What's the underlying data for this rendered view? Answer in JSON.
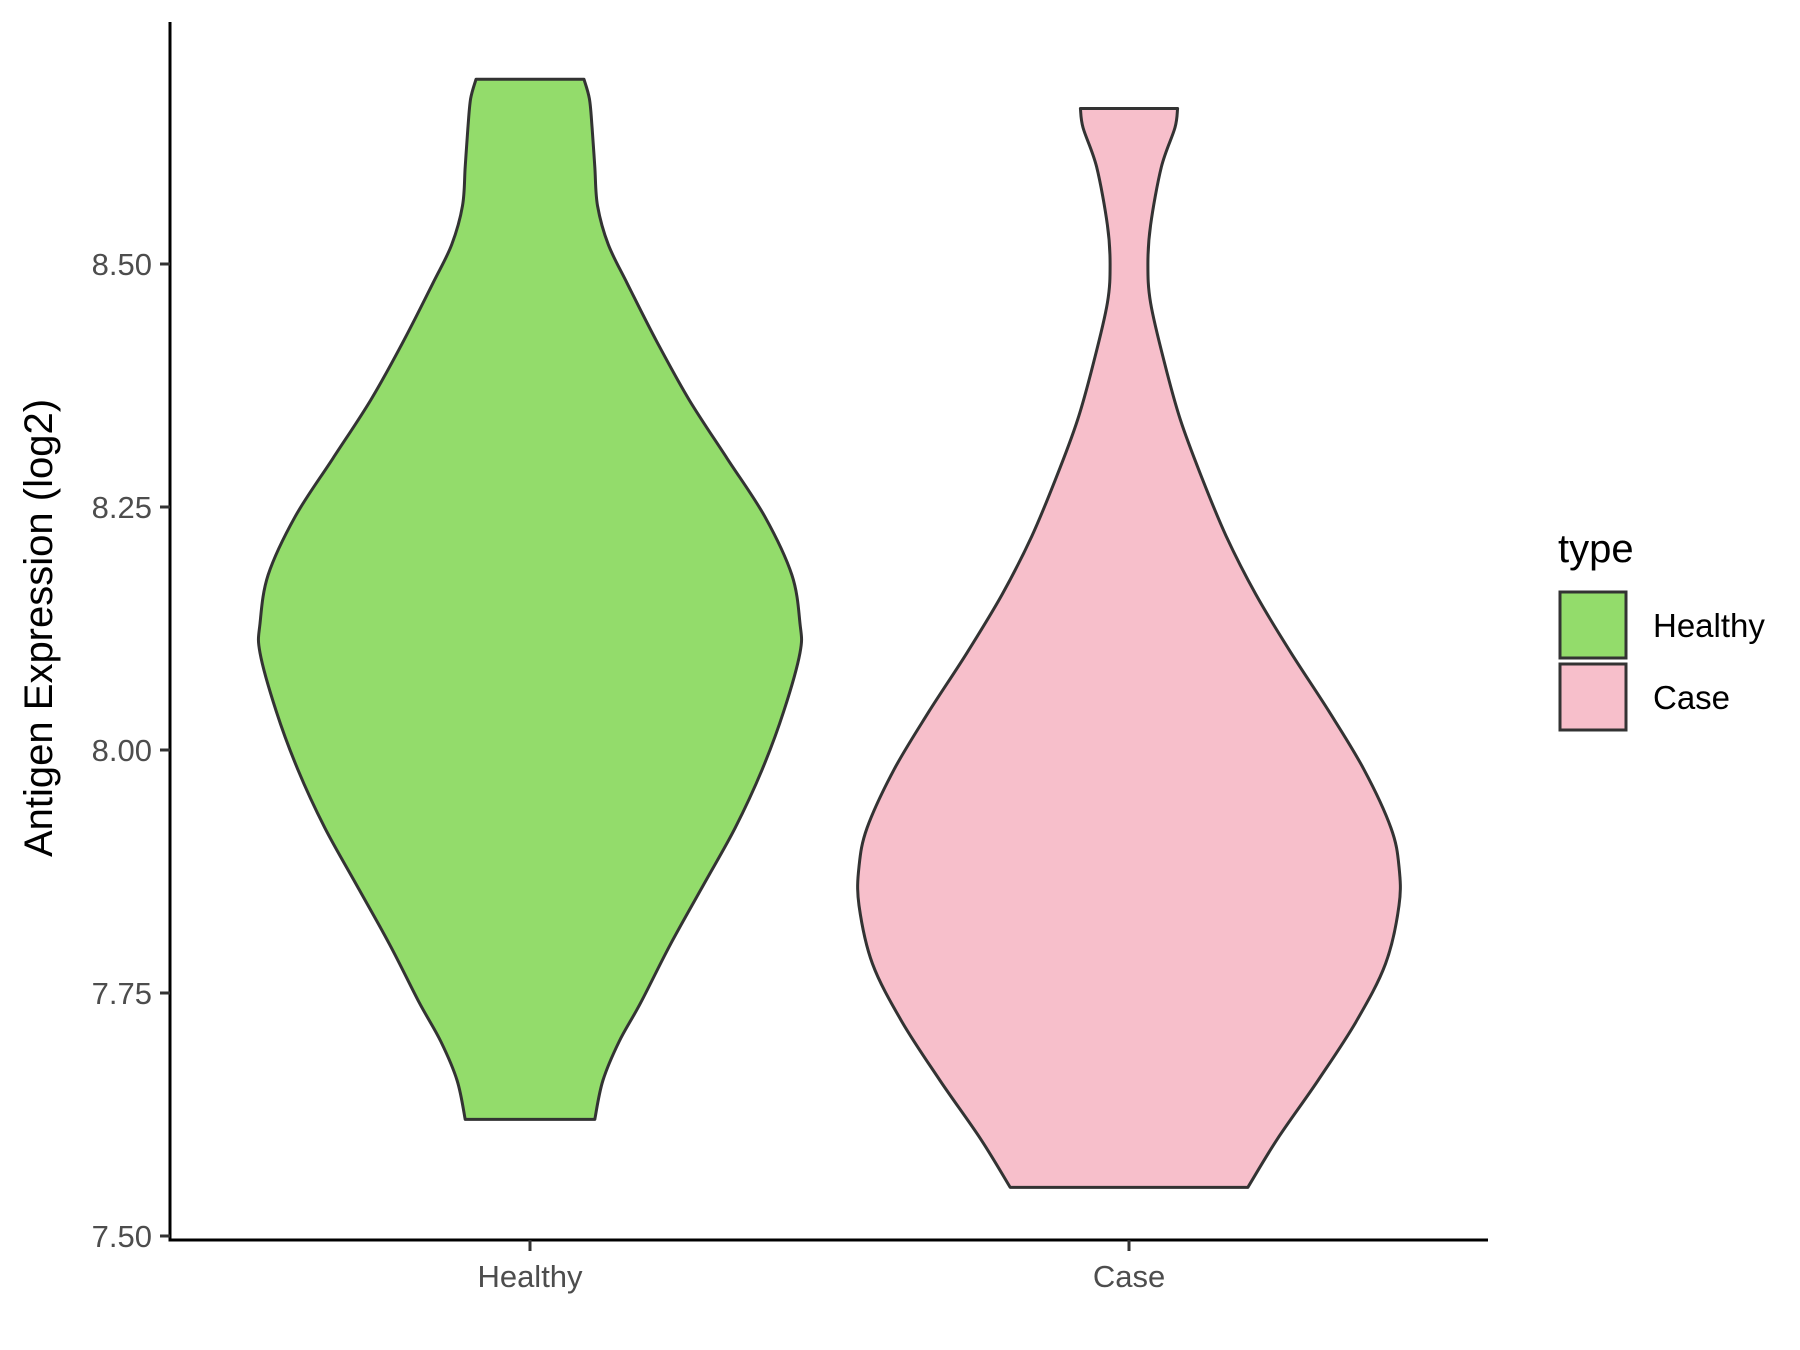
{
  "chart_data": {
    "type": "violin",
    "title": "",
    "xlabel": "",
    "ylabel": "Antigen Expression (log2)",
    "ylim": [
      7.5,
      8.75
    ],
    "yticks": [
      7.5,
      7.75,
      8.0,
      8.25,
      8.5
    ],
    "ytick_labels": [
      "7.50",
      "7.75",
      "8.00",
      "8.25",
      "8.50"
    ],
    "categories": [
      "Healthy",
      "Case"
    ],
    "grid": false,
    "legend": {
      "title": "type",
      "placement": "right",
      "entries": [
        "Healthy",
        "Case"
      ]
    },
    "series": [
      {
        "name": "Healthy",
        "color": "#93dc6b",
        "min": 7.62,
        "max": 8.69,
        "density_profile": [
          [
            7.62,
            0.24
          ],
          [
            7.66,
            0.27
          ],
          [
            7.7,
            0.33
          ],
          [
            7.74,
            0.41
          ],
          [
            7.8,
            0.52
          ],
          [
            7.86,
            0.64
          ],
          [
            7.92,
            0.76
          ],
          [
            7.98,
            0.86
          ],
          [
            8.04,
            0.94
          ],
          [
            8.1,
            1.0
          ],
          [
            8.13,
            1.0
          ],
          [
            8.18,
            0.97
          ],
          [
            8.24,
            0.87
          ],
          [
            8.3,
            0.73
          ],
          [
            8.36,
            0.59
          ],
          [
            8.42,
            0.47
          ],
          [
            8.48,
            0.36
          ],
          [
            8.52,
            0.29
          ],
          [
            8.56,
            0.25
          ],
          [
            8.6,
            0.24
          ],
          [
            8.64,
            0.23
          ],
          [
            8.67,
            0.22
          ],
          [
            8.69,
            0.2
          ]
        ]
      },
      {
        "name": "Case",
        "color": "#f7bfcb",
        "min": 7.55,
        "max": 8.66,
        "density_profile": [
          [
            7.55,
            0.44
          ],
          [
            7.6,
            0.55
          ],
          [
            7.66,
            0.7
          ],
          [
            7.72,
            0.84
          ],
          [
            7.78,
            0.95
          ],
          [
            7.84,
            1.0
          ],
          [
            7.88,
            1.0
          ],
          [
            7.92,
            0.97
          ],
          [
            7.98,
            0.87
          ],
          [
            8.04,
            0.74
          ],
          [
            8.1,
            0.6
          ],
          [
            8.16,
            0.47
          ],
          [
            8.22,
            0.36
          ],
          [
            8.28,
            0.27
          ],
          [
            8.34,
            0.19
          ],
          [
            8.4,
            0.13
          ],
          [
            8.46,
            0.08
          ],
          [
            8.5,
            0.07
          ],
          [
            8.54,
            0.08
          ],
          [
            8.6,
            0.12
          ],
          [
            8.64,
            0.17
          ],
          [
            8.66,
            0.18
          ]
        ]
      }
    ]
  }
}
